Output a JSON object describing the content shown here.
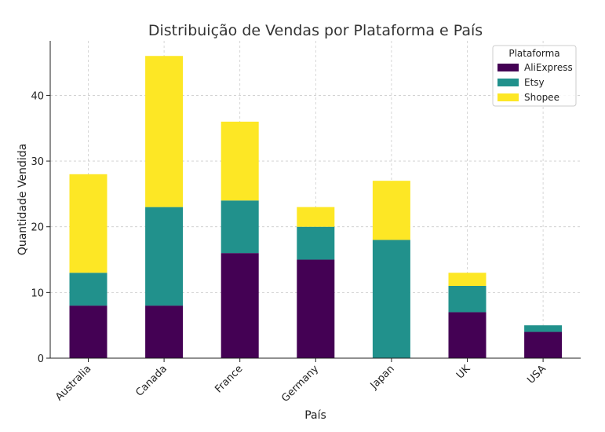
{
  "chart_data": {
    "type": "bar",
    "stacked": true,
    "title": "Distribuição de Vendas por Plataforma e País",
    "xlabel": "País",
    "ylabel": "Quantidade Vendida",
    "categories": [
      "Australia",
      "Canada",
      "France",
      "Germany",
      "Japan",
      "UK",
      "USA"
    ],
    "series": [
      {
        "name": "AliExpress",
        "color": "#440154",
        "values": [
          8,
          8,
          16,
          15,
          0,
          7,
          4
        ]
      },
      {
        "name": "Etsy",
        "color": "#21918c",
        "values": [
          5,
          15,
          8,
          5,
          18,
          4,
          1
        ]
      },
      {
        "name": "Shopee",
        "color": "#fde725",
        "values": [
          15,
          23,
          12,
          3,
          9,
          2,
          0
        ]
      }
    ],
    "ylim": [
      0,
      48.3
    ],
    "yticks": [
      0,
      10,
      20,
      30,
      40
    ],
    "grid": true,
    "legend": {
      "title": "Plataforma",
      "placement": "top-right"
    }
  }
}
